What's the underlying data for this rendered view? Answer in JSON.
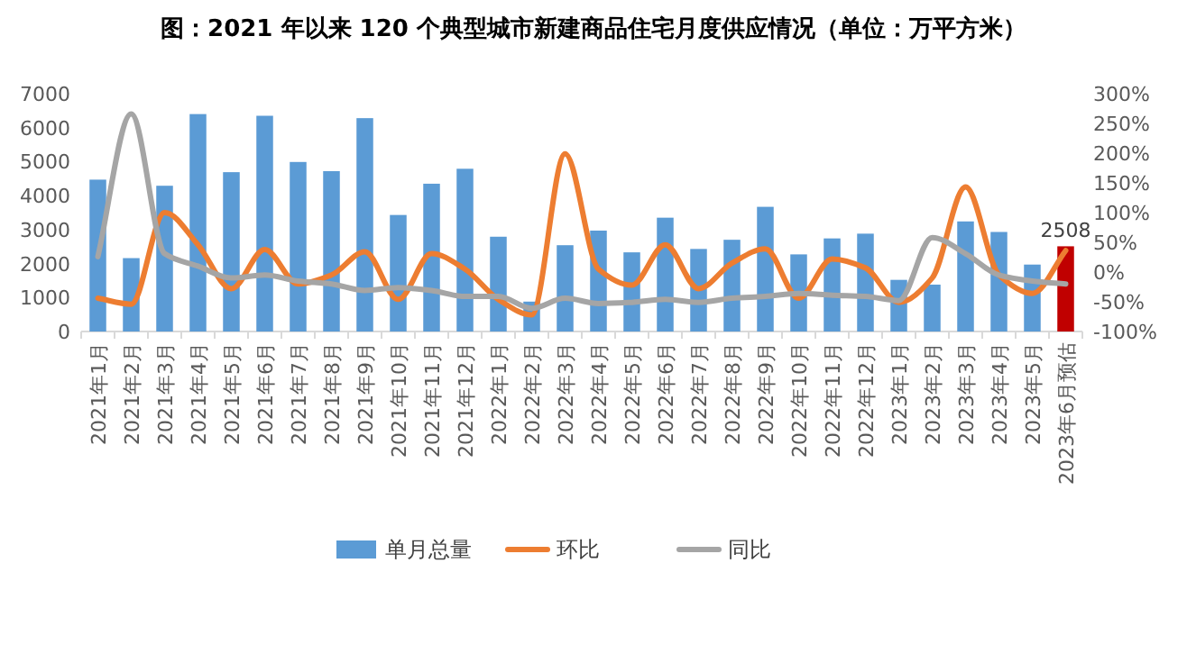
{
  "chart_data": {
    "type": "bar",
    "title": "图：2021 年以来 120 个典型城市新建商品住宅月度供应情况（单位：万平方米）",
    "categories": [
      "2021年1月",
      "2021年2月",
      "2021年3月",
      "2021年4月",
      "2021年5月",
      "2021年6月",
      "2021年7月",
      "2021年8月",
      "2021年9月",
      "2021年10月",
      "2021年11月",
      "2021年12月",
      "2022年1月",
      "2022年2月",
      "2022年3月",
      "2022年4月",
      "2022年5月",
      "2022年6月",
      "2022年7月",
      "2022年8月",
      "2022年9月",
      "2022年10月",
      "2022年11月",
      "2022年12月",
      "2023年1月",
      "2023年2月",
      "2023年3月",
      "2023年4月",
      "2023年5月",
      "2023年6月预估"
    ],
    "series": [
      {
        "name": "单月总量",
        "color": "#5b9bd5",
        "colors": [
          "#5b9bd5",
          "#5b9bd5",
          "#5b9bd5",
          "#5b9bd5",
          "#5b9bd5",
          "#5b9bd5",
          "#5b9bd5",
          "#5b9bd5",
          "#5b9bd5",
          "#5b9bd5",
          "#5b9bd5",
          "#5b9bd5",
          "#5b9bd5",
          "#5b9bd5",
          "#5b9bd5",
          "#5b9bd5",
          "#5b9bd5",
          "#5b9bd5",
          "#5b9bd5",
          "#5b9bd5",
          "#5b9bd5",
          "#5b9bd5",
          "#5b9bd5",
          "#5b9bd5",
          "#5b9bd5",
          "#5b9bd5",
          "#5b9bd5",
          "#5b9bd5",
          "#5b9bd5",
          "#c00000"
        ],
        "values": [
          4470,
          2160,
          4290,
          6400,
          4690,
          6350,
          4990,
          4720,
          6280,
          3430,
          4350,
          4790,
          2790,
          880,
          2540,
          2970,
          2330,
          3350,
          2430,
          2700,
          3670,
          2270,
          2740,
          2880,
          1520,
          1380,
          3240,
          2930,
          1970,
          2508
        ],
        "value_labels": [
          null,
          null,
          null,
          null,
          null,
          null,
          null,
          null,
          null,
          null,
          null,
          null,
          null,
          null,
          null,
          null,
          null,
          null,
          null,
          null,
          null,
          null,
          null,
          null,
          null,
          null,
          null,
          null,
          null,
          "2508"
        ]
      },
      {
        "name": "环比",
        "type": "line",
        "axis": "y2",
        "color": "#ed7d31",
        "values": [
          -44,
          -54,
          100,
          46,
          -28,
          38,
          -20,
          -5,
          34,
          -46,
          31,
          5,
          -46,
          -72,
          199,
          5,
          -22,
          46,
          -28,
          15,
          39,
          -44,
          22,
          7,
          -51,
          -10,
          143,
          -5,
          -36,
          36
        ]
      },
      {
        "name": "同比",
        "type": "line",
        "axis": "y2",
        "color": "#a5a5a5",
        "values": [
          26,
          266,
          31,
          10,
          -10,
          -5,
          -15,
          -20,
          -31,
          -26,
          -31,
          -41,
          -41,
          -61,
          -44,
          -53,
          -51,
          -46,
          -51,
          -44,
          -41,
          -36,
          -39,
          -41,
          -48,
          58,
          31,
          -5,
          -15,
          -20
        ]
      }
    ],
    "ylim": [
      0,
      7000
    ],
    "yticks": [
      0,
      1000,
      2000,
      3000,
      4000,
      5000,
      6000,
      7000
    ],
    "y2lim": [
      -100,
      300
    ],
    "y2ticks": [
      {
        "value": -100,
        "label": "-100%"
      },
      {
        "value": -50,
        "label": "-50%"
      },
      {
        "value": 0,
        "label": "0%"
      },
      {
        "value": 50,
        "label": "50%"
      },
      {
        "value": 100,
        "label": "100%"
      },
      {
        "value": 150,
        "label": "150%"
      },
      {
        "value": 200,
        "label": "200%"
      },
      {
        "value": 250,
        "label": "250%"
      },
      {
        "value": 300,
        "label": "300%"
      }
    ],
    "grid": false,
    "legend": "bottom"
  }
}
